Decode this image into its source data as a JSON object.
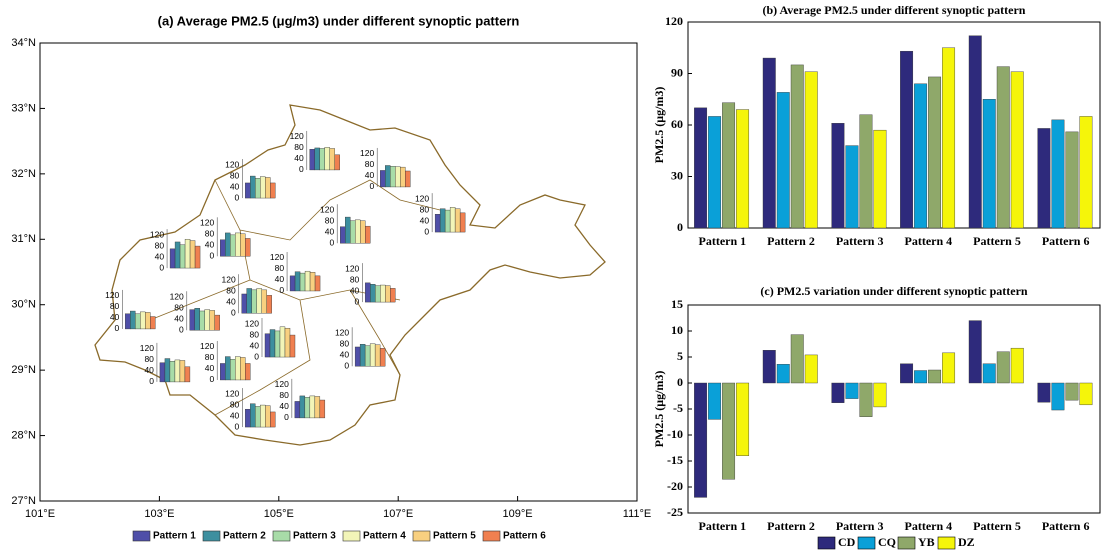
{
  "chart_data": [
    {
      "type": "map",
      "title": "(a) Average PM2.5 (μg/m3) under different synoptic pattern",
      "xlim": [
        101,
        111
      ],
      "xticks": [
        {
          "value": 101,
          "label": "101°E"
        },
        {
          "value": 103,
          "label": "103°E"
        },
        {
          "value": 105,
          "label": "105°E"
        },
        {
          "value": 107,
          "label": "107°E"
        },
        {
          "value": 109,
          "label": "109°E"
        },
        {
          "value": 111,
          "label": "111°E"
        }
      ],
      "ylim": [
        27,
        34
      ],
      "yticks": [
        {
          "value": 27,
          "label": "27°N"
        },
        {
          "value": 28,
          "label": "28°N"
        },
        {
          "value": 29,
          "label": "29°N"
        },
        {
          "value": 30,
          "label": "30°N"
        },
        {
          "value": 31,
          "label": "31°N"
        },
        {
          "value": 32,
          "label": "32°N"
        },
        {
          "value": 33,
          "label": "33°N"
        },
        {
          "value": 34,
          "label": "34°N"
        }
      ],
      "series": [
        {
          "name": "Pattern 1",
          "color": "#4f4fa8"
        },
        {
          "name": "Pattern 2",
          "color": "#3d8f9f"
        },
        {
          "name": "Pattern 3",
          "color": "#a8dca8"
        },
        {
          "name": "Pattern 4",
          "color": "#f2f5b8"
        },
        {
          "name": "Pattern 5",
          "color": "#f8d080"
        },
        {
          "name": "Pattern 6",
          "color": "#f08050"
        }
      ],
      "mini_ylim": [
        0,
        120
      ],
      "mini_yticks": [
        0,
        40,
        80,
        120
      ],
      "sites": [
        {
          "lon": 105.77,
          "lat": 32.06,
          "values": [
            75,
            80,
            78,
            82,
            78,
            55
          ]
        },
        {
          "lon": 106.95,
          "lat": 31.8,
          "values": [
            60,
            78,
            75,
            74,
            72,
            58
          ]
        },
        {
          "lon": 104.69,
          "lat": 31.63,
          "values": [
            55,
            80,
            72,
            78,
            75,
            55
          ]
        },
        {
          "lon": 107.87,
          "lat": 31.11,
          "values": [
            65,
            85,
            80,
            90,
            85,
            70
          ]
        },
        {
          "lon": 106.28,
          "lat": 30.94,
          "values": [
            60,
            95,
            82,
            85,
            82,
            62
          ]
        },
        {
          "lon": 103.43,
          "lat": 30.56,
          "values": [
            70,
            95,
            85,
            105,
            100,
            80
          ]
        },
        {
          "lon": 104.27,
          "lat": 30.74,
          "values": [
            60,
            85,
            78,
            85,
            82,
            65
          ]
        },
        {
          "lon": 105.44,
          "lat": 30.21,
          "values": [
            55,
            70,
            65,
            72,
            68,
            55
          ]
        },
        {
          "lon": 106.7,
          "lat": 30.04,
          "values": [
            70,
            65,
            60,
            62,
            60,
            50
          ]
        },
        {
          "lon": 104.63,
          "lat": 29.87,
          "values": [
            70,
            90,
            85,
            90,
            85,
            65
          ]
        },
        {
          "lon": 102.68,
          "lat": 29.63,
          "values": [
            55,
            65,
            55,
            62,
            60,
            45
          ]
        },
        {
          "lon": 103.76,
          "lat": 29.61,
          "values": [
            75,
            80,
            70,
            75,
            72,
            55
          ]
        },
        {
          "lon": 105.02,
          "lat": 29.2,
          "values": [
            85,
            100,
            95,
            110,
            105,
            80
          ]
        },
        {
          "lon": 104.27,
          "lat": 28.85,
          "values": [
            60,
            85,
            75,
            85,
            82,
            60
          ]
        },
        {
          "lon": 106.53,
          "lat": 29.06,
          "values": [
            70,
            80,
            75,
            82,
            78,
            65
          ]
        },
        {
          "lon": 103.26,
          "lat": 28.82,
          "values": [
            70,
            85,
            75,
            80,
            78,
            55
          ]
        },
        {
          "lon": 104.69,
          "lat": 28.13,
          "values": [
            65,
            85,
            75,
            80,
            78,
            55
          ]
        },
        {
          "lon": 105.52,
          "lat": 28.27,
          "values": [
            60,
            80,
            75,
            80,
            78,
            65
          ]
        }
      ]
    },
    {
      "type": "bar",
      "title": "(b) Average PM2.5 under different synoptic pattern",
      "ylabel": "PM2.5 (μg/m3)",
      "categories": [
        "Pattern 1",
        "Pattern 2",
        "Pattern 3",
        "Pattern 4",
        "Pattern 5",
        "Pattern 6"
      ],
      "series": [
        {
          "color": "#2e2a7c",
          "values": [
            70,
            99,
            61,
            103,
            112,
            58
          ]
        },
        {
          "color": "#0aa0d8",
          "values": [
            65,
            79,
            48,
            84,
            75,
            63
          ]
        },
        {
          "color": "#8fa86a",
          "values": [
            73,
            95,
            66,
            88,
            94,
            56
          ]
        },
        {
          "color": "#f5f50a",
          "values": [
            69,
            91,
            57,
            105,
            91,
            65
          ]
        }
      ],
      "ylim": [
        0,
        120
      ],
      "yticks": [
        0,
        30,
        60,
        90,
        120
      ]
    },
    {
      "type": "bar",
      "title": "(c) PM2.5 variation under different synoptic pattern",
      "ylabel": "PM2.5 (μg/m3)",
      "categories": [
        "Pattern 1",
        "Pattern 2",
        "Pattern 3",
        "Pattern 4",
        "Pattern 5",
        "Pattern 6"
      ],
      "series": [
        {
          "name": "CD",
          "color": "#2e2a7c",
          "values": [
            -22,
            6.3,
            -3.8,
            3.7,
            12,
            -3.7
          ]
        },
        {
          "name": "CQ",
          "color": "#0aa0d8",
          "values": [
            -7,
            3.6,
            -3,
            2.4,
            3.7,
            -5.2
          ]
        },
        {
          "name": "YB",
          "color": "#8fa86a",
          "values": [
            -18.5,
            9.3,
            -6.5,
            2.5,
            6,
            -3.3
          ]
        },
        {
          "name": "DZ",
          "color": "#f5f50a",
          "values": [
            -14,
            5.4,
            -4.6,
            5.8,
            6.7,
            -4.2
          ]
        }
      ],
      "ylim": [
        -25,
        15
      ],
      "yticks": [
        -25,
        -20,
        -15,
        -10,
        -5,
        0,
        5,
        10,
        15
      ]
    }
  ]
}
